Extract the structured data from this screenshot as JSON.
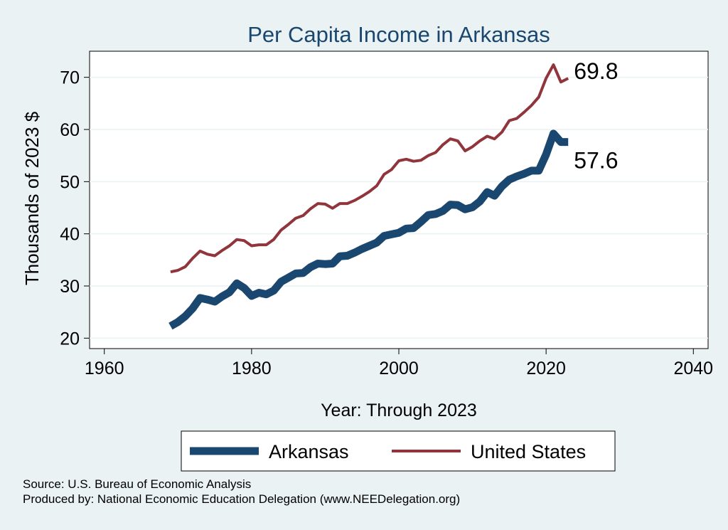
{
  "chart_data": {
    "type": "line",
    "title": "Per Capita Income in Arkansas",
    "xlabel": "Year: Through 2023",
    "ylabel": "Thousands of 2023 $",
    "xlim": [
      1958,
      2042
    ],
    "ylim": [
      18,
      75
    ],
    "x_ticks": [
      1960,
      1980,
      2000,
      2020,
      2040
    ],
    "y_ticks": [
      20,
      30,
      40,
      50,
      60,
      70
    ],
    "grid": "horizontal",
    "legend_position": "bottom",
    "series": [
      {
        "name": "Arkansas",
        "color": "#1A476F",
        "x": [
          1969,
          1970,
          1971,
          1972,
          1973,
          1974,
          1975,
          1976,
          1977,
          1978,
          1979,
          1980,
          1981,
          1982,
          1983,
          1984,
          1985,
          1986,
          1987,
          1988,
          1989,
          1990,
          1991,
          1992,
          1993,
          1994,
          1995,
          1996,
          1997,
          1998,
          1999,
          2000,
          2001,
          2002,
          2003,
          2004,
          2005,
          2006,
          2007,
          2008,
          2009,
          2010,
          2011,
          2012,
          2013,
          2014,
          2015,
          2016,
          2017,
          2018,
          2019,
          2020,
          2021,
          2022,
          2023
        ],
        "values": [
          22.3,
          23.1,
          24.2,
          25.7,
          27.7,
          27.4,
          27.0,
          28.0,
          28.8,
          30.5,
          29.6,
          28.1,
          28.7,
          28.4,
          29.1,
          30.8,
          31.6,
          32.4,
          32.5,
          33.6,
          34.3,
          34.2,
          34.3,
          35.7,
          35.8,
          36.4,
          37.1,
          37.7,
          38.3,
          39.6,
          39.9,
          40.2,
          41.0,
          41.1,
          42.3,
          43.6,
          43.8,
          44.4,
          45.6,
          45.5,
          44.7,
          45.1,
          46.2,
          48.0,
          47.3,
          49.1,
          50.4,
          51.0,
          51.5,
          52.1,
          52.1,
          55.2,
          59.2,
          57.6,
          57.6
        ],
        "end_label": "57.6"
      },
      {
        "name": "United States",
        "color": "#90353B",
        "x": [
          1969,
          1970,
          1971,
          1972,
          1973,
          1974,
          1975,
          1976,
          1977,
          1978,
          1979,
          1980,
          1981,
          1982,
          1983,
          1984,
          1985,
          1986,
          1987,
          1988,
          1989,
          1990,
          1991,
          1992,
          1993,
          1994,
          1995,
          1996,
          1997,
          1998,
          1999,
          2000,
          2001,
          2002,
          2003,
          2004,
          2005,
          2006,
          2007,
          2008,
          2009,
          2010,
          2011,
          2012,
          2013,
          2014,
          2015,
          2016,
          2017,
          2018,
          2019,
          2020,
          2021,
          2022,
          2023
        ],
        "values": [
          32.7,
          33.0,
          33.7,
          35.3,
          36.7,
          36.1,
          35.8,
          36.8,
          37.7,
          38.9,
          38.7,
          37.7,
          37.9,
          37.9,
          38.9,
          40.7,
          41.8,
          43.0,
          43.5,
          44.8,
          45.8,
          45.7,
          44.9,
          45.8,
          45.8,
          46.4,
          47.2,
          48.1,
          49.2,
          51.4,
          52.3,
          54.0,
          54.3,
          53.9,
          54.1,
          55.0,
          55.6,
          57.1,
          58.2,
          57.8,
          55.9,
          56.7,
          57.8,
          58.7,
          58.2,
          59.5,
          61.7,
          62.1,
          63.3,
          64.6,
          66.2,
          69.8,
          72.4,
          69.1,
          69.8
        ],
        "end_label": "69.8"
      }
    ]
  },
  "source_text": "Source: U.S. Bureau of Economic Analysis",
  "produced_text": "Produced by: National Economic Education Delegation (www.NEEDelegation.org)"
}
